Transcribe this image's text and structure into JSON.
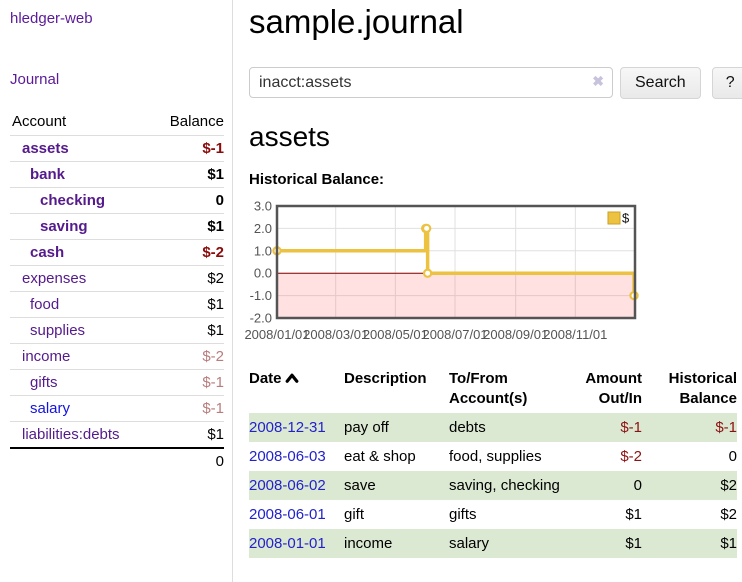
{
  "app": {
    "title": "hledger-web",
    "journal_link": "Journal"
  },
  "sidebar": {
    "header": {
      "account": "Account",
      "balance": "Balance"
    },
    "accounts": [
      {
        "name": "assets",
        "depth": 0,
        "balance": "$-1",
        "bold": true,
        "negative": true
      },
      {
        "name": "bank",
        "depth": 1,
        "balance": "$1",
        "bold": true,
        "negative": false
      },
      {
        "name": "checking",
        "depth": 2,
        "balance": "0",
        "bold": true,
        "negative": false
      },
      {
        "name": "saving",
        "depth": 2,
        "balance": "$1",
        "bold": true,
        "negative": false
      },
      {
        "name": "cash",
        "depth": 1,
        "balance": "$-2",
        "bold": true,
        "negative": true
      },
      {
        "name": "expenses",
        "depth": 0,
        "balance": "$2",
        "bold": false,
        "negative": false
      },
      {
        "name": "food",
        "depth": 1,
        "balance": "$1",
        "bold": false,
        "negative": false
      },
      {
        "name": "supplies",
        "depth": 1,
        "balance": "$1",
        "bold": false,
        "negative": false
      },
      {
        "name": "income",
        "depth": 0,
        "balance": "$-2",
        "bold": false,
        "negative": true
      },
      {
        "name": "gifts",
        "depth": 1,
        "balance": "$-1",
        "bold": false,
        "negative": true
      },
      {
        "name": "salary",
        "depth": 1,
        "balance": "$-1",
        "bold": false,
        "negative": true,
        "unvisited": true
      },
      {
        "name": "liabilities:debts",
        "depth": 0,
        "balance": "$1",
        "bold": false,
        "negative": false
      }
    ],
    "total": "0"
  },
  "main": {
    "title": "sample.journal",
    "search": {
      "value": "inacct:assets",
      "clear_icon": "✖",
      "button": "Search",
      "help": "?"
    },
    "account_heading": "assets",
    "chart_label": "Historical Balance:"
  },
  "chart_data": {
    "type": "line",
    "title": "Historical Balance:",
    "step": true,
    "series": [
      {
        "name": "$",
        "color": "#edc240",
        "points": [
          {
            "date": "2008-01-01",
            "value": 1
          },
          {
            "date": "2008-06-01",
            "value": 2
          },
          {
            "date": "2008-06-02",
            "value": 2
          },
          {
            "date": "2008-06-03",
            "value": 0
          },
          {
            "date": "2008-12-31",
            "value": -1
          }
        ]
      }
    ],
    "xrange": [
      "2008-01-01",
      "2009-01-01"
    ],
    "ylim": [
      -2,
      3
    ],
    "yticks": [
      "3.0",
      "2.0",
      "1.0",
      "0.0",
      "-1.0",
      "-2.0"
    ],
    "xticks": [
      {
        "label": "2008/01/01",
        "date": "2008-01-01"
      },
      {
        "label": "2008/03/01",
        "date": "2008-03-01"
      },
      {
        "label": "2008/05/01",
        "date": "2008-05-01"
      },
      {
        "label": "2008/07/01",
        "date": "2008-07-01"
      },
      {
        "label": "2008/09/01",
        "date": "2008-09-01"
      },
      {
        "label": "2008/11/01",
        "date": "2008-11-01"
      }
    ],
    "legend_position": "top-right",
    "grid": true,
    "colors": {
      "grid": "#e0e0e0",
      "border": "#545454",
      "tick_text": "#545454",
      "zero_line": "#8b0000",
      "negative_fill": "rgba(255,90,90,0.18)",
      "marker_fill": "#ffffff"
    }
  },
  "register": {
    "headers": {
      "date": "Date",
      "description": "Description",
      "accounts": "To/From Account(s)",
      "amount": "Amount Out/In",
      "balance": "Historical Balance"
    },
    "rows": [
      {
        "date": "2008-12-31",
        "description": "pay off",
        "accounts": "debts",
        "amount": "$-1",
        "amount_negative": true,
        "balance": "$-1",
        "balance_negative": true
      },
      {
        "date": "2008-06-03",
        "description": "eat & shop",
        "accounts": "food, supplies",
        "amount": "$-2",
        "amount_negative": true,
        "balance": "0",
        "balance_negative": false
      },
      {
        "date": "2008-06-02",
        "description": "save",
        "accounts": "saving, checking",
        "amount": "0",
        "amount_negative": false,
        "balance": "$2",
        "balance_negative": false
      },
      {
        "date": "2008-06-01",
        "description": "gift",
        "accounts": "gifts",
        "amount": "$1",
        "amount_negative": false,
        "balance": "$2",
        "balance_negative": false
      },
      {
        "date": "2008-01-01",
        "description": "income",
        "accounts": "salary",
        "amount": "$1",
        "amount_negative": false,
        "balance": "$1",
        "balance_negative": false
      }
    ]
  }
}
